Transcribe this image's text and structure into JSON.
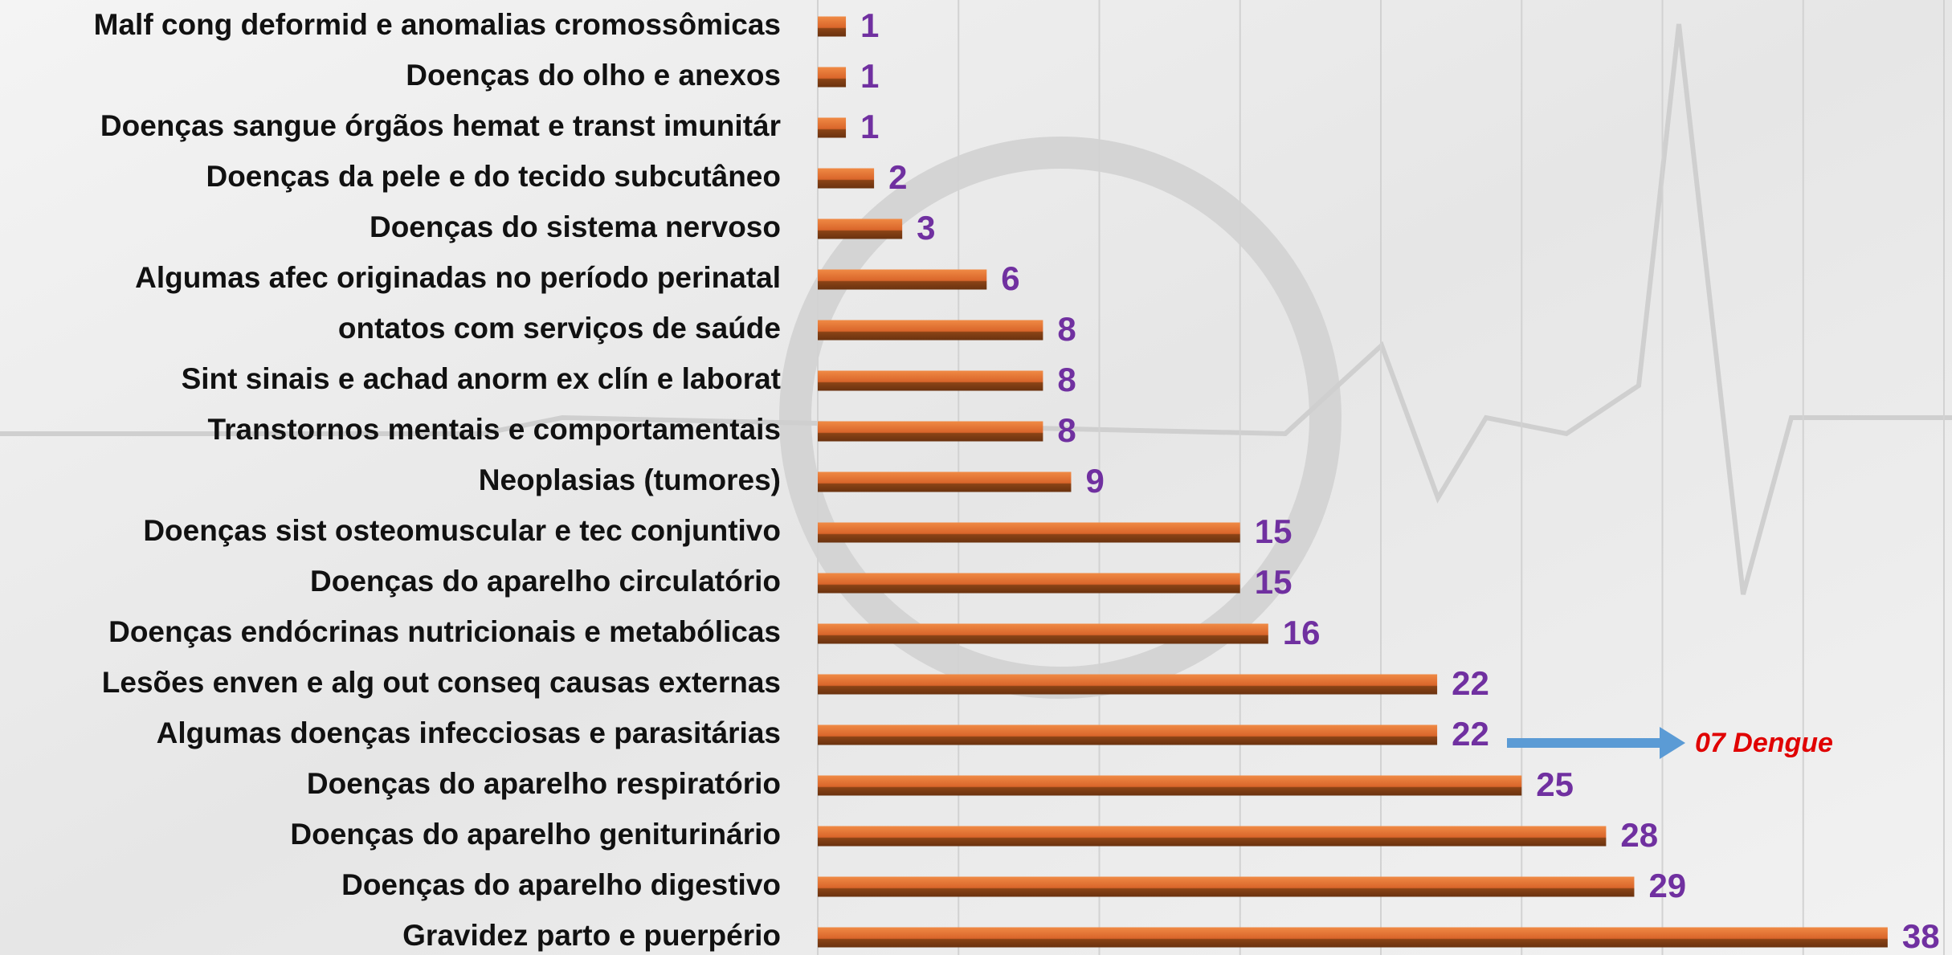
{
  "chart_data": {
    "type": "bar",
    "orientation": "horizontal",
    "categories": [
      "Malf cong deformid e anomalias cromossômicas",
      "Doenças do olho e anexos",
      "Doenças sangue órgãos hemat e transt imunitár",
      "Doenças da pele e do tecido subcutâneo",
      "Doenças do sistema nervoso",
      "Algumas afec originadas no período perinatal",
      "ontatos com serviços de saúde",
      "Sint sinais e achad anorm ex clín e laborat",
      "Transtornos mentais e comportamentais",
      "Neoplasias (tumores)",
      "Doenças sist osteomuscular e tec conjuntivo",
      "Doenças do aparelho circulatório",
      "Doenças endócrinas nutricionais e metabólicas",
      "Lesões enven e alg out conseq causas externas",
      "Algumas doenças infecciosas e parasitárias",
      "Doenças do aparelho respiratório",
      "Doenças do aparelho geniturinário",
      "Doenças do aparelho digestivo",
      "Gravidez parto e puerpério"
    ],
    "values": [
      1,
      1,
      1,
      2,
      3,
      6,
      8,
      8,
      8,
      9,
      15,
      15,
      16,
      22,
      22,
      25,
      28,
      29,
      38
    ],
    "color": "#d9652a",
    "xlim": [
      0,
      40
    ],
    "xticks": [
      0,
      5,
      10,
      15,
      20,
      25,
      30,
      35,
      40
    ],
    "grid": true,
    "annotation": "07 Dengue"
  }
}
